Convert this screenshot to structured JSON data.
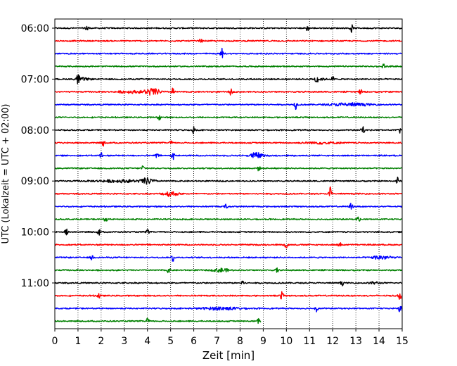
{
  "chart_data": {
    "type": "line",
    "title": "",
    "xlabel": "Zeit  [min]",
    "ylabel": "UTC (Lokalzeit = UTC + 02:00)",
    "xlim": [
      0,
      15
    ],
    "x_ticks": [
      "0",
      "1",
      "2",
      "3",
      "4",
      "5",
      "6",
      "7",
      "8",
      "9",
      "10",
      "11",
      "12",
      "13",
      "14",
      "15"
    ],
    "y_tick_labels": [
      "06:00",
      "07:00",
      "08:00",
      "09:00",
      "10:00",
      "11:00"
    ],
    "y_tick_rows": [
      0,
      4,
      8,
      12,
      16,
      20
    ],
    "grid": "vertical dotted lines at each minute",
    "row_interval_minutes": 15,
    "first_row": "06:00",
    "color_cycle": [
      "#000000",
      "#ff0000",
      "#0000ff",
      "#008000"
    ],
    "series": [
      {
        "start": "06:00",
        "color": "#000000",
        "x_end": 15,
        "events": [
          [
            1.4,
            1.0
          ],
          [
            10.9,
            0.6
          ],
          [
            12.8,
            0.9
          ]
        ],
        "bursts": []
      },
      {
        "start": "06:15",
        "color": "#ff0000",
        "x_end": 15,
        "events": [
          [
            6.3,
            0.4
          ]
        ],
        "bursts": []
      },
      {
        "start": "06:30",
        "color": "#0000ff",
        "x_end": 15,
        "events": [
          [
            7.2,
            1.2
          ]
        ],
        "bursts": []
      },
      {
        "start": "06:45",
        "color": "#008000",
        "x_end": 15,
        "events": [
          [
            14.2,
            0.6
          ]
        ],
        "bursts": []
      },
      {
        "start": "07:00",
        "color": "#000000",
        "x_end": 15,
        "events": [
          [
            1.0,
            1.1
          ],
          [
            11.3,
            0.8
          ],
          [
            12.0,
            0.5
          ]
        ],
        "bursts": [
          [
            1.2,
            0.6,
            0.5
          ],
          [
            11.4,
            0.5,
            0.5
          ]
        ]
      },
      {
        "start": "07:15",
        "color": "#ff0000",
        "x_end": 15,
        "events": [
          [
            5.1,
            0.9
          ],
          [
            7.6,
            0.6
          ],
          [
            13.2,
            0.5
          ]
        ],
        "bursts": [
          [
            4.2,
            0.7,
            1.5
          ],
          [
            3.2,
            0.9,
            0.5
          ]
        ]
      },
      {
        "start": "07:30",
        "color": "#0000ff",
        "x_end": 15,
        "events": [
          [
            10.4,
            0.9
          ]
        ],
        "bursts": [
          [
            12.7,
            1.6,
            0.7
          ]
        ]
      },
      {
        "start": "07:45",
        "color": "#008000",
        "x_end": 15,
        "events": [
          [
            4.5,
            0.5
          ]
        ],
        "bursts": []
      },
      {
        "start": "08:00",
        "color": "#000000",
        "x_end": 15,
        "events": [
          [
            6.0,
            0.7
          ],
          [
            13.3,
            0.9
          ],
          [
            14.9,
            0.6
          ]
        ],
        "bursts": []
      },
      {
        "start": "08:15",
        "color": "#ff0000",
        "x_end": 15,
        "events": [
          [
            2.1,
            0.6
          ],
          [
            5.0,
            0.5
          ]
        ],
        "bursts": [
          [
            11.5,
            1.5,
            0.4
          ]
        ]
      },
      {
        "start": "08:30",
        "color": "#0000ff",
        "x_end": 15,
        "events": [
          [
            2.0,
            0.7
          ],
          [
            4.4,
            0.6
          ],
          [
            5.1,
            0.8
          ]
        ],
        "bursts": [
          [
            8.7,
            0.5,
            1.3
          ]
        ]
      },
      {
        "start": "08:45",
        "color": "#008000",
        "x_end": 15,
        "events": [
          [
            3.8,
            0.7
          ],
          [
            8.8,
            0.5
          ]
        ],
        "bursts": []
      },
      {
        "start": "09:00",
        "color": "#000000",
        "x_end": 15,
        "events": [
          [
            14.8,
            0.8
          ]
        ],
        "bursts": [
          [
            4.0,
            0.5,
            1.3
          ],
          [
            2.8,
            2.0,
            0.5
          ]
        ]
      },
      {
        "start": "09:15",
        "color": "#ff0000",
        "x_end": 15,
        "events": [
          [
            11.9,
            1.5
          ]
        ],
        "bursts": [
          [
            5.0,
            0.6,
            1.1
          ]
        ]
      },
      {
        "start": "09:30",
        "color": "#0000ff",
        "x_end": 15,
        "events": [
          [
            7.4,
            0.5
          ],
          [
            12.8,
            0.9
          ]
        ],
        "bursts": []
      },
      {
        "start": "09:45",
        "color": "#008000",
        "x_end": 15,
        "events": [
          [
            2.2,
            0.6
          ],
          [
            13.1,
            0.7
          ]
        ],
        "bursts": []
      },
      {
        "start": "10:00",
        "color": "#000000",
        "x_end": 15,
        "events": [
          [
            0.5,
            0.8
          ],
          [
            1.9,
            0.7
          ],
          [
            4.0,
            0.5
          ]
        ],
        "bursts": []
      },
      {
        "start": "10:15",
        "color": "#ff0000",
        "x_end": 15,
        "events": [
          [
            10.0,
            1.0
          ],
          [
            12.3,
            0.5
          ]
        ],
        "bursts": []
      },
      {
        "start": "10:30",
        "color": "#0000ff",
        "x_end": 15,
        "events": [
          [
            5.1,
            0.9
          ],
          [
            1.6,
            0.6
          ]
        ],
        "bursts": [
          [
            14.1,
            0.8,
            0.9
          ]
        ]
      },
      {
        "start": "10:45",
        "color": "#008000",
        "x_end": 15,
        "events": [
          [
            4.9,
            0.5
          ],
          [
            9.6,
            0.5
          ]
        ],
        "bursts": [
          [
            7.2,
            0.6,
            0.9
          ]
        ]
      },
      {
        "start": "11:00",
        "color": "#000000",
        "x_end": 15,
        "events": [
          [
            8.1,
            0.8
          ],
          [
            12.4,
            0.5
          ]
        ],
        "bursts": [
          [
            13.8,
            0.4,
            0.5
          ]
        ]
      },
      {
        "start": "11:15",
        "color": "#ff0000",
        "x_end": 15,
        "events": [
          [
            1.9,
            0.6
          ],
          [
            9.8,
            0.9
          ],
          [
            14.9,
            0.8
          ]
        ],
        "bursts": []
      },
      {
        "start": "11:30",
        "color": "#0000ff",
        "x_end": 15,
        "events": [
          [
            11.3,
            0.6
          ],
          [
            14.9,
            0.8
          ]
        ],
        "bursts": [
          [
            7.2,
            1.6,
            0.6
          ]
        ]
      },
      {
        "start": "11:45",
        "color": "#008000",
        "x_end": 8.9,
        "events": [
          [
            4.0,
            0.9
          ],
          [
            8.8,
            0.5
          ]
        ],
        "bursts": []
      }
    ]
  }
}
